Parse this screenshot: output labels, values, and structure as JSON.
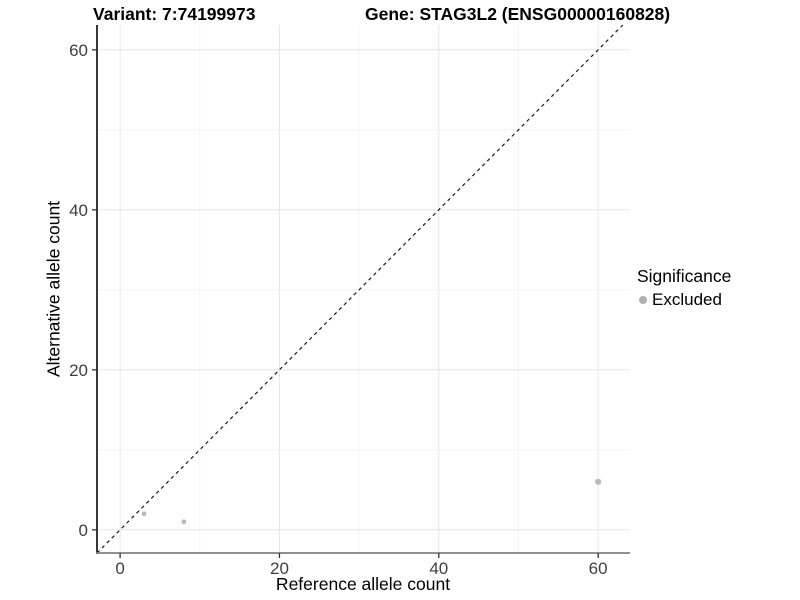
{
  "chart_data": {
    "type": "scatter",
    "title_left": "Variant: 7:74199973",
    "title_right": "Gene: STAG3L2 (ENSG00000160828)",
    "xlabel": "Reference allele count",
    "ylabel": "Alternative allele count",
    "x_ticks": [
      0,
      20,
      40,
      60
    ],
    "y_ticks": [
      0,
      20,
      40,
      60
    ],
    "x_minor": [
      10,
      30,
      50
    ],
    "y_minor": [
      10,
      30,
      50
    ],
    "xlim": [
      -2.9,
      64.0
    ],
    "ylim": [
      -2.9,
      63.1
    ],
    "grid": true,
    "identity_line": {
      "equation": "y = x",
      "style": "dashed"
    },
    "series": [
      {
        "name": "Excluded",
        "color": "#b9b9b9",
        "points": [
          {
            "x": 3,
            "y": 2,
            "r": 2.4
          },
          {
            "x": 8,
            "y": 1,
            "r": 2.4
          },
          {
            "x": 60,
            "y": 6,
            "r": 3.1
          }
        ]
      }
    ],
    "legend": {
      "title": "Significance",
      "position": "right",
      "items": [
        {
          "label": "Excluded",
          "color": "#b0b0b0"
        }
      ]
    },
    "colors": {
      "background": "#ffffff",
      "grid_major": "#e6e6e6",
      "grid_minor": "#f3f3f3",
      "axis_y": "#222222",
      "axis_x": "#808080",
      "tick_mark": "#333333",
      "tick_label": "#404040",
      "title": "#000000",
      "identity_line": "#1a1a1a"
    }
  }
}
